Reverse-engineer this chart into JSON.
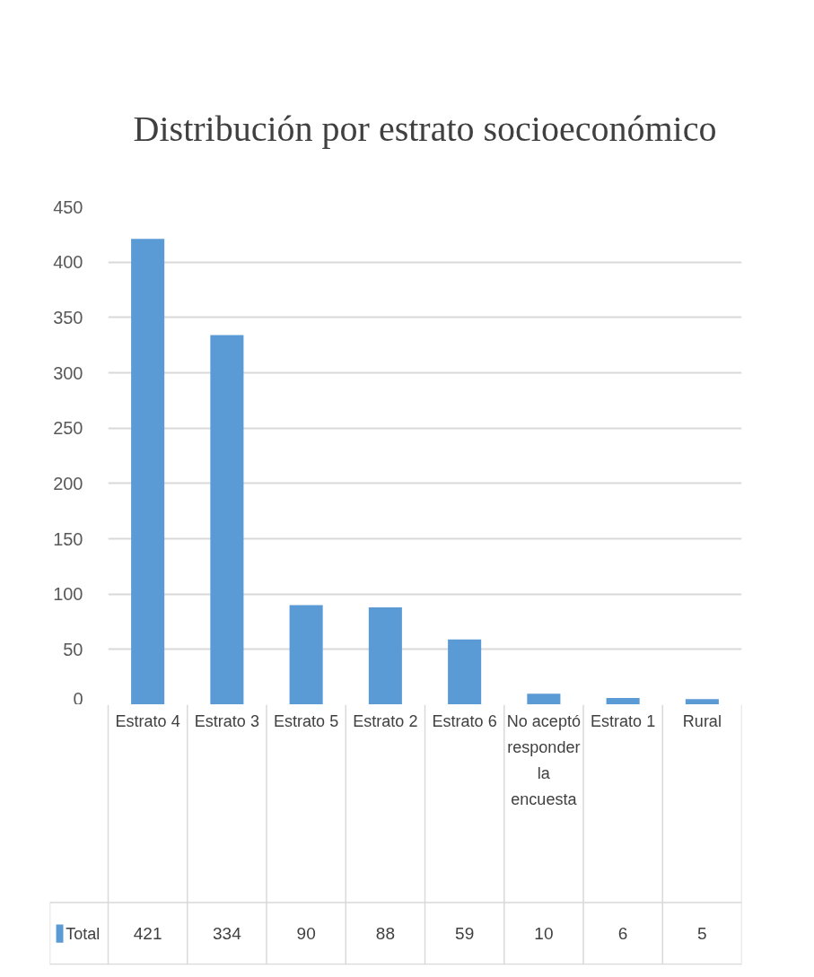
{
  "chart_data": {
    "type": "bar",
    "title": "Distribución por estrato socioeconómico",
    "categories": [
      "Estrato 4",
      "Estrato 3",
      "Estrato 5",
      "Estrato 2",
      "Estrato 6",
      "No aceptó responder la encuesta",
      "Estrato 1",
      "Rural"
    ],
    "series": [
      {
        "name": "Total",
        "color": "#5b9bd5",
        "values": [
          421,
          334,
          90,
          88,
          59,
          10,
          6,
          5
        ]
      }
    ],
    "ylim": [
      0,
      450
    ],
    "yticks": [
      0,
      50,
      100,
      150,
      200,
      250,
      300,
      350,
      400,
      450
    ],
    "grid": "y",
    "legend": "bottom left",
    "data_labels": true
  }
}
